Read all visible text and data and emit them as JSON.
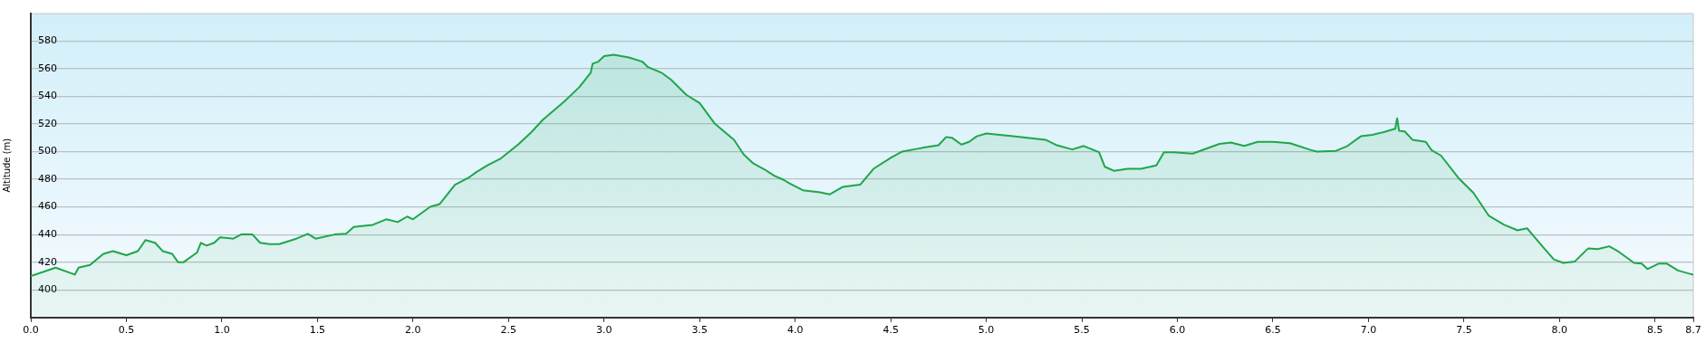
{
  "chart_data": {
    "type": "area",
    "ylabel": "Altitude (m)",
    "xlim": [
      0,
      8.7
    ],
    "ylim": [
      380,
      600
    ],
    "xticks": [
      {
        "value": 0,
        "label": "0.0"
      },
      0.5,
      {
        "value": 1,
        "label": "1.0"
      },
      1.5,
      {
        "value": 2,
        "label": "2.0"
      },
      2.5,
      {
        "value": 3,
        "label": "3.0"
      },
      3.5,
      {
        "value": 4,
        "label": "4.0"
      },
      4.5,
      {
        "value": 5,
        "label": "5.0"
      },
      5.5,
      {
        "value": 6,
        "label": "6.0"
      },
      6.5,
      {
        "value": 7,
        "label": "7.0"
      },
      7.5,
      {
        "value": 8,
        "label": "8.0"
      },
      8.5,
      8.7
    ],
    "yticks": [
      400,
      420,
      440,
      460,
      480,
      500,
      520,
      540,
      560,
      580
    ],
    "grid": "y",
    "legend": false,
    "marker": "none",
    "line_style": "solid",
    "series": [
      {
        "color": "#1fa64a",
        "x": [
          0,
          0.13,
          0.23,
          0.25,
          0.31,
          0.38,
          0.43,
          0.5,
          0.56,
          0.6,
          0.65,
          0.69,
          0.74,
          0.77,
          0.8,
          0.87,
          0.89,
          0.92,
          0.96,
          0.99,
          1.06,
          1.1,
          1.16,
          1.2,
          1.25,
          1.3,
          1.39,
          1.45,
          1.49,
          1.59,
          1.65,
          1.69,
          1.79,
          1.86,
          1.92,
          1.97,
          2.0,
          2.09,
          2.14,
          2.22,
          2.29,
          2.33,
          2.39,
          2.46,
          2.55,
          2.62,
          2.68,
          2.79,
          2.87,
          2.93,
          2.94,
          2.97,
          3.0,
          3.05,
          3.13,
          3.2,
          3.23,
          3.3,
          3.35,
          3.43,
          3.5,
          3.58,
          3.68,
          3.73,
          3.78,
          3.84,
          3.89,
          3.94,
          3.97,
          4.04,
          4.13,
          4.18,
          4.25,
          4.34,
          4.41,
          4.5,
          4.56,
          4.64,
          4.68,
          4.75,
          4.79,
          4.82,
          4.87,
          4.91,
          4.95,
          5.0,
          5.14,
          5.31,
          5.37,
          5.45,
          5.51,
          5.59,
          5.62,
          5.67,
          5.74,
          5.81,
          5.89,
          5.93,
          5.98,
          6.08,
          6.22,
          6.28,
          6.35,
          6.42,
          6.5,
          6.59,
          6.7,
          6.73,
          6.83,
          6.89,
          6.96,
          7.02,
          7.08,
          7.14,
          7.15,
          7.16,
          7.19,
          7.23,
          7.3,
          7.33,
          7.38,
          7.47,
          7.55,
          7.63,
          7.71,
          7.78,
          7.83,
          7.91,
          7.97,
          8.02,
          8.08,
          8.15,
          8.2,
          8.26,
          8.31,
          8.39,
          8.43,
          8.46,
          8.52,
          8.56,
          8.62,
          8.67,
          8.7
        ],
        "values": [
          410,
          416,
          411,
          416,
          418,
          426,
          428,
          425,
          428,
          436,
          434,
          428,
          426,
          420,
          420,
          427,
          434,
          432,
          434,
          438,
          437,
          440,
          440,
          434,
          433,
          433,
          437,
          440.5,
          437,
          440,
          440.5,
          445.5,
          447,
          451,
          449,
          453,
          451,
          460,
          462,
          476,
          481,
          485,
          490,
          495,
          505,
          514,
          523,
          536,
          546.5,
          557,
          563.5,
          565,
          569,
          570,
          568,
          565,
          561,
          557,
          552,
          541,
          535,
          520,
          508.5,
          498,
          491.5,
          487,
          482.5,
          479.5,
          477,
          472,
          470.5,
          469,
          474.5,
          476,
          487.5,
          495.5,
          500,
          502,
          503,
          504.5,
          510.5,
          510,
          505,
          507,
          511,
          513,
          511,
          508.5,
          504.5,
          501.5,
          504,
          499.5,
          489,
          486,
          487.5,
          487.5,
          490,
          499.5,
          499.5,
          498.5,
          505.5,
          506.5,
          504,
          507,
          507,
          506,
          501,
          500,
          500.5,
          504,
          511,
          512,
          514,
          516.5,
          524,
          515,
          514.5,
          508.5,
          507,
          501,
          497,
          481,
          470,
          453.5,
          447,
          443,
          444.5,
          431.5,
          422,
          419.5,
          420.5,
          430,
          429.5,
          431.5,
          427.5,
          419.5,
          419,
          415,
          419,
          419,
          414,
          412,
          411
        ]
      }
    ]
  }
}
